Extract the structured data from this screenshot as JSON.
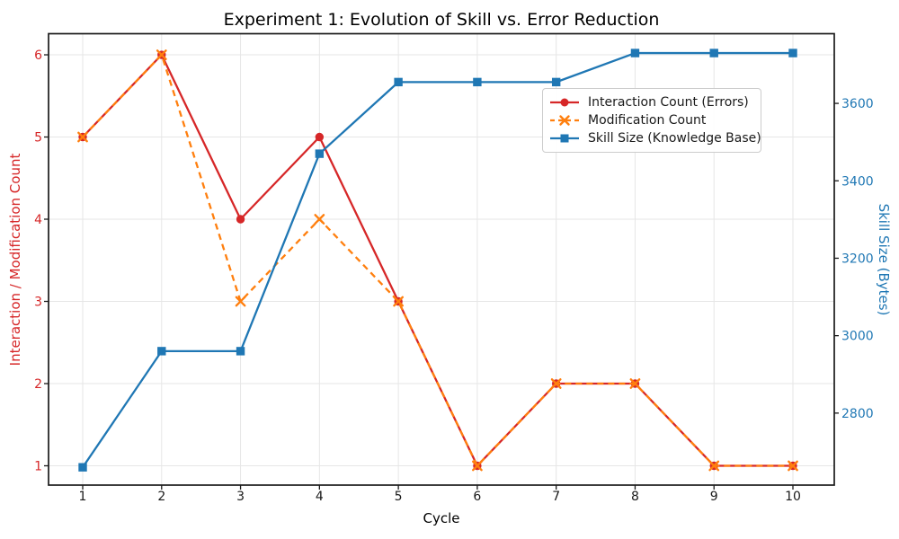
{
  "chart_data": {
    "type": "line",
    "title": "Experiment 1: Evolution of Skill vs. Error Reduction",
    "xlabel": "Cycle",
    "ylabel_left": "Interaction / Modification Count",
    "ylabel_right": "Skill Size (Bytes)",
    "x": [
      1,
      2,
      3,
      4,
      5,
      6,
      7,
      8,
      9,
      10
    ],
    "x_ticks": [
      1,
      2,
      3,
      4,
      5,
      6,
      7,
      8,
      9,
      10
    ],
    "left_ticks": [
      1,
      2,
      3,
      4,
      5,
      6
    ],
    "right_ticks": [
      2800,
      3000,
      3200,
      3400,
      3600
    ],
    "x_range": [
      0.567,
      10.524
    ],
    "left_range": [
      0.765,
      6.257
    ],
    "right_range": [
      2614,
      3780
    ],
    "grid": true,
    "legend_position": "center right",
    "colors": {
      "left_axis": "#d62728",
      "right_axis": "#1f77b4",
      "x_tick_labels": "#1a1a1a",
      "grid": "#e6e6e6",
      "spine": "#1a1a1a",
      "background": "#ffffff"
    },
    "series": [
      {
        "name": "Interaction Count (Errors)",
        "axis": "left",
        "color": "#d62728",
        "marker": "circle",
        "linestyle": "solid",
        "values": [
          5,
          6,
          4,
          5,
          3,
          1,
          2,
          2,
          1,
          1
        ]
      },
      {
        "name": "Modification Count",
        "axis": "left",
        "color": "#ff7f0e",
        "marker": "x",
        "linestyle": "dashed",
        "values": [
          5,
          6,
          3,
          4,
          3,
          1,
          2,
          2,
          1,
          1
        ]
      },
      {
        "name": "Skill Size (Knowledge Base)",
        "axis": "right",
        "color": "#1f77b4",
        "marker": "square",
        "linestyle": "solid",
        "values": [
          2660,
          2960,
          2960,
          3470,
          3655,
          3655,
          3655,
          3730,
          3730,
          3730
        ]
      }
    ]
  }
}
